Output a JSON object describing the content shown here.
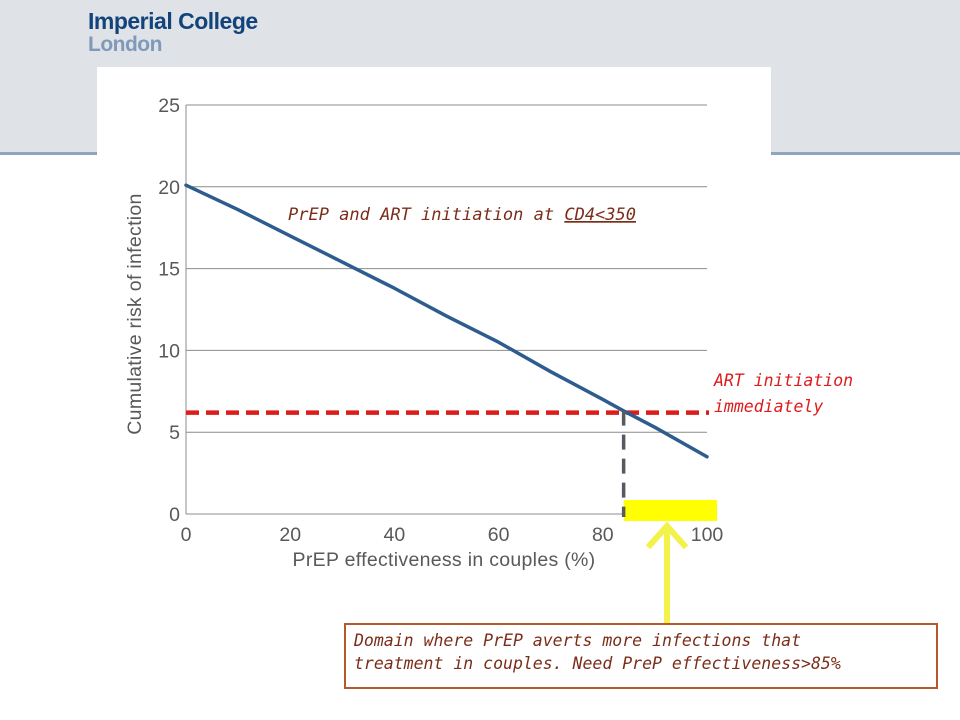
{
  "header": {
    "logo_line1": "Imperial College",
    "logo_line2": "London"
  },
  "colors": {
    "prep_line": "#2e5c8f",
    "art_line": "#dd1c1c",
    "highlight": "#ffff00",
    "arrow": "#f2f24a",
    "dashed_marker": "#555a63",
    "prep_annotation": "#7b2d1a",
    "art_annotation": "#dd1c1c",
    "callout_border": "#b5592a"
  },
  "chart_data": {
    "type": "line",
    "xlabel": "PrEP effectiveness in couples (%)",
    "ylabel": "Cumulative risk of infection",
    "xlim": [
      0,
      100
    ],
    "ylim": [
      0,
      25
    ],
    "x_ticks": [
      "0",
      "20",
      "40",
      "60",
      "80",
      "100"
    ],
    "y_ticks": [
      "0",
      "5",
      "10",
      "15",
      "20",
      "25"
    ],
    "grid": "horizontal",
    "series": [
      {
        "name": "PrEP and ART initiation at CD4<350",
        "x": [
          0,
          10,
          20,
          30,
          40,
          50,
          60,
          70,
          80,
          84,
          90,
          100
        ],
        "values": [
          20.1,
          18.6,
          17.0,
          15.4,
          13.8,
          12.1,
          10.5,
          8.7,
          7.0,
          6.3,
          5.3,
          3.5
        ]
      },
      {
        "name": "ART initiation immediately",
        "x": [
          0,
          100
        ],
        "values": [
          6.2,
          6.2
        ]
      }
    ],
    "crossover_x": 84,
    "highlight_domain": [
      84,
      100
    ],
    "annotations": {
      "prep_prefix": "PrEP and ART initiation at ",
      "prep_threshold": "CD4<350",
      "art_line1": "ART initiation",
      "art_line2": "immediately"
    }
  },
  "callout": {
    "text": "Domain where PrEP averts more infections that\ntreatment in couples.  Need PreP effectiveness>85%"
  }
}
